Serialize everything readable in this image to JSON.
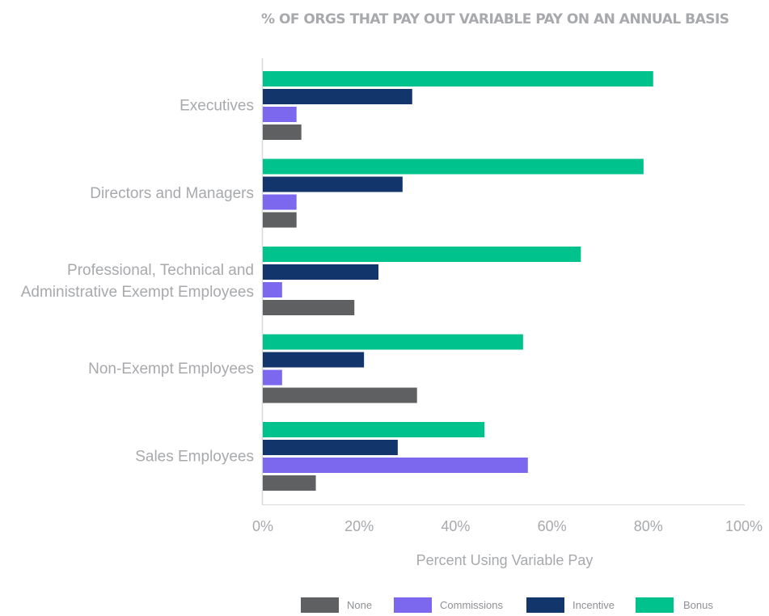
{
  "chart_data": {
    "type": "bar",
    "orientation": "horizontal",
    "title": "% OF ORGS THAT PAY OUT VARIABLE PAY ON AN ANNUAL BASIS",
    "xlabel": "Percent Using Variable Pay",
    "ylabel": "",
    "xlim": [
      0,
      100
    ],
    "xticks": [
      "0%",
      "20%",
      "40%",
      "60%",
      "80%",
      "100%"
    ],
    "categories": [
      [
        "Executives"
      ],
      [
        "Directors and Managers"
      ],
      [
        "Professional, Technical and",
        "Administrative Exempt Employees"
      ],
      [
        "Non-Exempt Employees"
      ],
      [
        "Sales Employees"
      ]
    ],
    "series": [
      {
        "name": "Bonus",
        "color": "#00c28c",
        "values": [
          81,
          79,
          66,
          54,
          46
        ]
      },
      {
        "name": "Incentive",
        "color": "#12366b",
        "values": [
          31,
          29,
          24,
          21,
          28
        ]
      },
      {
        "name": "Commissions",
        "color": "#7b68ee",
        "values": [
          7,
          7,
          4,
          4,
          55
        ]
      },
      {
        "name": "None",
        "color": "#5f6062",
        "values": [
          8,
          7,
          19,
          32,
          11
        ]
      }
    ],
    "legend": {
      "position": "bottom",
      "order": [
        "None",
        "Commissions",
        "Incentive",
        "Bonus"
      ]
    },
    "grid": false
  }
}
